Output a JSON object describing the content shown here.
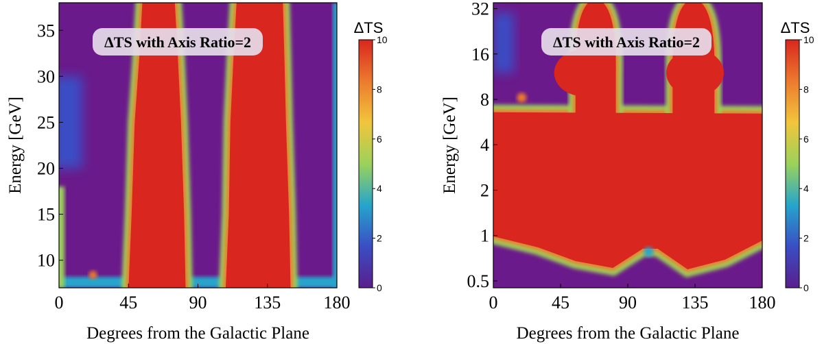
{
  "colors": {
    "background": "#6a1a8a",
    "saturated": "#d9261f",
    "title_box": "#e6dcea",
    "colormap": [
      "#5a1e8c",
      "#3a4ec4",
      "#25a5cc",
      "#9bd25a",
      "#f2c53c",
      "#ec7a2e",
      "#d9261f"
    ]
  },
  "chart_data": [
    {
      "type": "heatmap",
      "title": "ΔTS with Axis Ratio=2",
      "xlabel": "Degrees from the Galactic Plane",
      "ylabel": "Energy [GeV]",
      "xlim": [
        0,
        180
      ],
      "ylim": [
        7,
        38
      ],
      "yscale": "linear",
      "xticks": [
        "0",
        "45",
        "90",
        "135",
        "180"
      ],
      "yticks": [
        "10",
        "15",
        "20",
        "25",
        "30",
        "35"
      ],
      "ytick_values": [
        10,
        15,
        20,
        25,
        30,
        35
      ],
      "colorbar": {
        "label": "ΔTS",
        "range": [
          0,
          10
        ],
        "ticks": [
          "0",
          "2",
          "4",
          "6",
          "8",
          "10"
        ]
      },
      "saturated_bands": [
        {
          "x_low": [
            45,
            47,
            49,
            52,
            54
          ],
          "x_high": [
            82,
            81,
            79,
            77,
            75
          ],
          "y": [
            7,
            15,
            25,
            32,
            38
          ]
        },
        {
          "x_low": [
            108,
            110,
            111,
            113,
            115
          ],
          "x_high": [
            150,
            149,
            147,
            146,
            145
          ],
          "y": [
            7,
            15,
            25,
            32,
            38
          ]
        }
      ],
      "low_regions": [
        {
          "x": [
            0,
            15
          ],
          "y": [
            20,
            30
          ],
          "value": 2
        }
      ]
    },
    {
      "type": "heatmap",
      "title": "ΔTS with Axis Ratio=2",
      "xlabel": "Degrees from the Galactic Plane",
      "ylabel": "Energy [GeV]",
      "xlim": [
        0,
        180
      ],
      "ylim": [
        0.45,
        35
      ],
      "yscale": "log",
      "xticks": [
        "0",
        "45",
        "90",
        "135",
        "180"
      ],
      "yticks": [
        "0.5",
        "1",
        "2",
        "4",
        "8",
        "16",
        "32"
      ],
      "ytick_values": [
        0.5,
        1,
        2,
        4,
        8,
        16,
        32
      ],
      "colorbar": {
        "label": "ΔTS",
        "range": [
          0,
          10
        ],
        "ticks": [
          "0",
          "2",
          "4",
          "6",
          "8",
          "10"
        ]
      },
      "saturated_region": {
        "energy_range": [
          0.8,
          7
        ],
        "arches": [
          {
            "x_low": 55,
            "x_high": 82,
            "top": 35
          },
          {
            "x_low": 120,
            "x_high": 148,
            "top": 35
          }
        ]
      }
    }
  ]
}
